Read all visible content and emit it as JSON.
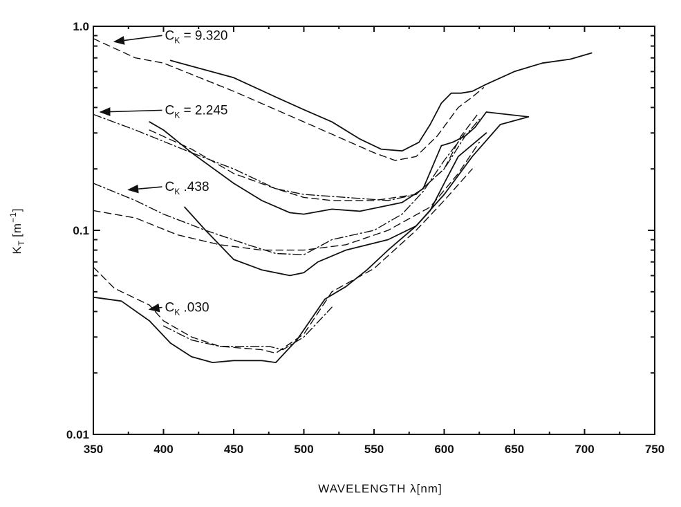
{
  "chart_data": {
    "type": "line",
    "xlabel": "WAVELENGTH λ[nm]",
    "ylabel": "K",
    "ylabel_subscript": "T",
    "ylabel_unit": "[m",
    "ylabel_unit_exp": "−1",
    "ylabel_unit_close": "]",
    "xlim": [
      350,
      750
    ],
    "ylim": [
      0.01,
      1.0
    ],
    "yscale": "log",
    "grid": false,
    "x_ticks": [
      350,
      400,
      450,
      500,
      550,
      600,
      650,
      700,
      750
    ],
    "x_tick_labels": [
      "350",
      "400",
      "450",
      "500",
      "550",
      "600",
      "650",
      "700",
      "750"
    ],
    "y_ticks": [
      0.01,
      0.1,
      1.0
    ],
    "y_tick_labels": [
      "0.01",
      "0.1",
      "1.0"
    ],
    "series": [
      {
        "style": "solid",
        "x": [
          405,
          450,
          480,
          500,
          520,
          540,
          555,
          570,
          582,
          590,
          598,
          605,
          612,
          620,
          630,
          650,
          670,
          690,
          705
        ],
        "y": [
          0.68,
          0.56,
          0.45,
          0.39,
          0.34,
          0.28,
          0.25,
          0.245,
          0.27,
          0.33,
          0.42,
          0.47,
          0.47,
          0.48,
          0.52,
          0.6,
          0.66,
          0.69,
          0.74
        ]
      },
      {
        "style": "dashed",
        "x": [
          350,
          380,
          400,
          450,
          500,
          550,
          565,
          580,
          595,
          610,
          620,
          628
        ],
        "y": [
          0.87,
          0.7,
          0.66,
          0.48,
          0.34,
          0.24,
          0.22,
          0.23,
          0.29,
          0.4,
          0.45,
          0.5
        ]
      },
      {
        "style": "solid",
        "x": [
          390,
          400,
          420,
          450,
          470,
          490,
          500,
          520,
          540,
          570,
          585,
          598,
          606,
          615,
          622,
          630,
          660
        ],
        "y": [
          0.34,
          0.31,
          0.24,
          0.17,
          0.14,
          0.122,
          0.12,
          0.127,
          0.124,
          0.137,
          0.16,
          0.26,
          0.27,
          0.29,
          0.32,
          0.38,
          0.36
        ]
      },
      {
        "style": "dash-dot",
        "x": [
          350,
          380,
          420,
          450,
          480,
          500,
          530,
          560,
          580,
          600,
          615,
          625
        ],
        "y": [
          0.37,
          0.31,
          0.24,
          0.2,
          0.16,
          0.15,
          0.145,
          0.14,
          0.15,
          0.2,
          0.29,
          0.35
        ]
      },
      {
        "style": "dashed",
        "x": [
          390,
          420,
          450,
          480,
          500,
          520,
          550,
          580,
          600,
          612,
          625
        ],
        "y": [
          0.31,
          0.25,
          0.19,
          0.16,
          0.145,
          0.14,
          0.14,
          0.15,
          0.2,
          0.29,
          0.38
        ]
      },
      {
        "style": "solid",
        "x": [
          415,
          430,
          450,
          470,
          490,
          500,
          510,
          530,
          560,
          580,
          590,
          600,
          610,
          630
        ],
        "y": [
          0.13,
          0.1,
          0.072,
          0.064,
          0.06,
          0.062,
          0.07,
          0.08,
          0.09,
          0.105,
          0.125,
          0.17,
          0.23,
          0.3
        ]
      },
      {
        "style": "dash-dot",
        "x": [
          350,
          380,
          400,
          430,
          460,
          480,
          500,
          520,
          550,
          570,
          585,
          600,
          615
        ],
        "y": [
          0.17,
          0.14,
          0.12,
          0.1,
          0.085,
          0.077,
          0.076,
          0.09,
          0.1,
          0.12,
          0.155,
          0.22,
          0.3
        ]
      },
      {
        "style": "dashed",
        "x": [
          350,
          380,
          410,
          440,
          470,
          500,
          530,
          560,
          590,
          610,
          625
        ],
        "y": [
          0.125,
          0.115,
          0.095,
          0.085,
          0.08,
          0.08,
          0.085,
          0.1,
          0.13,
          0.19,
          0.27
        ]
      },
      {
        "style": "solid",
        "x": [
          350,
          370,
          390,
          405,
          420,
          435,
          450,
          470,
          480,
          495,
          515,
          530,
          545,
          560,
          580,
          600,
          620,
          640,
          660
        ],
        "y": [
          0.047,
          0.045,
          0.036,
          0.028,
          0.024,
          0.0225,
          0.023,
          0.023,
          0.0225,
          0.029,
          0.046,
          0.053,
          0.064,
          0.08,
          0.105,
          0.15,
          0.23,
          0.33,
          0.36
        ]
      },
      {
        "style": "dashed",
        "x": [
          350,
          365,
          390,
          400,
          420,
          440,
          470,
          480,
          500,
          520,
          550,
          580,
          600,
          620
        ],
        "y": [
          0.066,
          0.052,
          0.043,
          0.036,
          0.03,
          0.027,
          0.026,
          0.025,
          0.031,
          0.05,
          0.065,
          0.1,
          0.14,
          0.2
        ]
      },
      {
        "style": "dash-dot",
        "x": [
          400,
          420,
          440,
          460,
          475,
          485,
          500,
          520
        ],
        "y": [
          0.034,
          0.029,
          0.027,
          0.027,
          0.027,
          0.026,
          0.03,
          0.042
        ]
      }
    ],
    "annotations": [
      {
        "label": "C",
        "sub": "K",
        "value": " = 9.320",
        "arrow_to": [
          365,
          0.84
        ],
        "text_at": [
          400,
          0.86
        ]
      },
      {
        "label": "C",
        "sub": "K",
        "value": " = 2.245",
        "arrow_to": [
          355,
          0.38
        ],
        "text_at": [
          400,
          0.37
        ]
      },
      {
        "label": "C",
        "sub": "K",
        "value": " .438",
        "arrow_to": [
          375,
          0.158
        ],
        "text_at": [
          400,
          0.156
        ]
      },
      {
        "label": "C",
        "sub": "K",
        "value": " .030",
        "arrow_to": [
          390,
          0.041
        ],
        "text_at": [
          400,
          0.04
        ]
      }
    ]
  }
}
